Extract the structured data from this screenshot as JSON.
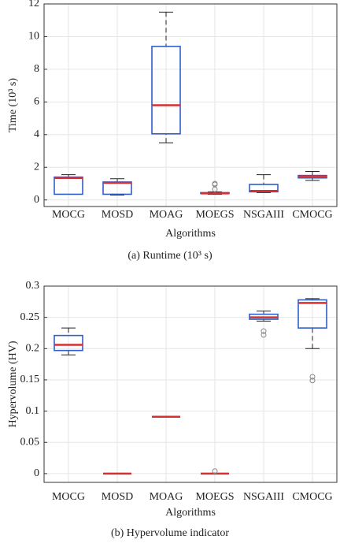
{
  "chart_data": [
    {
      "type": "box",
      "ylabel": "Time (10³ s)",
      "xlabel": "Algorithms",
      "caption": "(a) Runtime (10³ s)",
      "categories": [
        "MOCG",
        "MOSD",
        "MOAG",
        "MOEGS",
        "NSGAIII",
        "CMOCG"
      ],
      "boxes": [
        {
          "min": 0.35,
          "q1": 0.35,
          "median": 1.35,
          "q3": 1.4,
          "max": 1.55,
          "outliers": []
        },
        {
          "min": 0.3,
          "q1": 0.35,
          "median": 1.05,
          "q3": 1.1,
          "max": 1.3,
          "outliers": []
        },
        {
          "min": 3.5,
          "q1": 4.05,
          "median": 5.8,
          "q3": 9.4,
          "max": 11.5,
          "outliers": []
        },
        {
          "min": 0.35,
          "q1": 0.4,
          "median": 0.4,
          "q3": 0.45,
          "max": 0.5,
          "outliers": [
            0.65,
            0.95,
            1.0
          ]
        },
        {
          "min": 0.45,
          "q1": 0.5,
          "median": 0.55,
          "q3": 0.95,
          "max": 1.55,
          "outliers": []
        },
        {
          "min": 1.2,
          "q1": 1.35,
          "median": 1.45,
          "q3": 1.5,
          "max": 1.75,
          "outliers": []
        }
      ],
      "ylim": [
        -0.4,
        12
      ],
      "yticks": [
        0,
        2,
        4,
        6,
        8,
        10,
        12
      ],
      "grid": true,
      "box_color": "#2f5fc8",
      "median_color": "#d62f2f"
    },
    {
      "type": "box",
      "ylabel": "Hypervolume (HV)",
      "xlabel": "Algorithms",
      "caption": "(b) Hypervolume indicator",
      "categories": [
        "MOCG",
        "MOSD",
        "MOAG",
        "MOEGS",
        "NSGAIII",
        "CMOCG"
      ],
      "boxes": [
        {
          "min": 0.19,
          "q1": 0.197,
          "median": 0.206,
          "q3": 0.221,
          "max": 0.233,
          "outliers": []
        },
        {
          "min": 0,
          "q1": 0,
          "median": 0,
          "q3": 0,
          "max": 0,
          "outliers": []
        },
        {
          "min": 0.091,
          "q1": 0.091,
          "median": 0.091,
          "q3": 0.091,
          "max": 0.091,
          "outliers": []
        },
        {
          "min": 0,
          "q1": 0,
          "median": 0,
          "q3": 0,
          "max": 0,
          "outliers": [
            0.004
          ]
        },
        {
          "min": 0.244,
          "q1": 0.247,
          "median": 0.25,
          "q3": 0.255,
          "max": 0.26,
          "outliers": [
            0.228,
            0.222
          ]
        },
        {
          "min": 0.2,
          "q1": 0.233,
          "median": 0.273,
          "q3": 0.278,
          "max": 0.28,
          "outliers": [
            0.155,
            0.149
          ]
        }
      ],
      "ylim": [
        -0.014,
        0.3
      ],
      "yticks": [
        0,
        0.05,
        0.1,
        0.15,
        0.2,
        0.25,
        0.3
      ],
      "grid": true,
      "box_color": "#2f5fc8",
      "median_color": "#d62f2f"
    }
  ]
}
